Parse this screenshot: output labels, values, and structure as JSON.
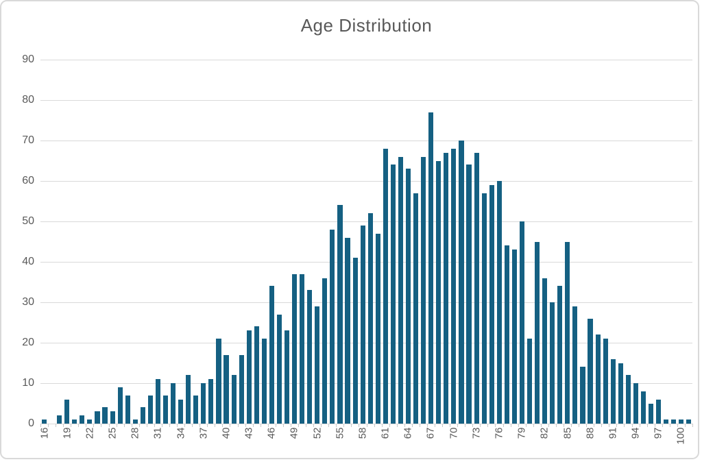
{
  "chart_data": {
    "type": "bar",
    "title": "Age Distribution",
    "xlabel": "",
    "ylabel": "",
    "categories": [
      16,
      17,
      18,
      19,
      20,
      21,
      22,
      23,
      24,
      25,
      26,
      27,
      28,
      29,
      30,
      31,
      32,
      33,
      34,
      35,
      36,
      37,
      38,
      39,
      40,
      41,
      42,
      43,
      44,
      45,
      46,
      47,
      48,
      49,
      50,
      51,
      52,
      53,
      54,
      55,
      56,
      57,
      58,
      59,
      60,
      61,
      62,
      63,
      64,
      65,
      66,
      67,
      68,
      69,
      70,
      71,
      72,
      73,
      74,
      75,
      76,
      77,
      78,
      79,
      80,
      81,
      82,
      83,
      84,
      85,
      86,
      87,
      88,
      89,
      90,
      91,
      92,
      93,
      94,
      95,
      96,
      97,
      98,
      99,
      100,
      101
    ],
    "values": [
      1,
      0,
      2,
      6,
      1,
      2,
      1,
      3,
      4,
      3,
      9,
      7,
      1,
      4,
      7,
      11,
      7,
      10,
      6,
      12,
      7,
      10,
      11,
      21,
      17,
      12,
      17,
      23,
      24,
      21,
      34,
      27,
      23,
      37,
      37,
      33,
      29,
      36,
      48,
      54,
      46,
      41,
      49,
      52,
      47,
      68,
      64,
      66,
      63,
      57,
      66,
      77,
      65,
      67,
      68,
      70,
      64,
      67,
      57,
      59,
      60,
      44,
      43,
      50,
      21,
      45,
      36,
      30,
      34,
      45,
      29,
      14,
      26,
      22,
      21,
      16,
      15,
      12,
      10,
      8,
      5,
      6,
      1,
      1,
      1,
      1
    ],
    "x_tick_labels": [
      "16",
      "19",
      "22",
      "25",
      "28",
      "31",
      "34",
      "37",
      "40",
      "43",
      "46",
      "49",
      "52",
      "55",
      "58",
      "61",
      "64",
      "67",
      "70",
      "73",
      "76",
      "79",
      "82",
      "85",
      "88",
      "91",
      "94",
      "97",
      "100"
    ],
    "x_label_interval": 3,
    "y_tick_labels": [
      "0",
      "10",
      "20",
      "30",
      "40",
      "50",
      "60",
      "70",
      "80",
      "90"
    ],
    "y_ticks": [
      0,
      10,
      20,
      30,
      40,
      50,
      60,
      70,
      80,
      90
    ],
    "ylim": [
      0,
      90
    ],
    "grid": true,
    "legend": "none",
    "bar_color": "#156082",
    "gridline_color": "#d9d9d9",
    "axis_label_color": "#595959",
    "title_color": "#595959",
    "frame_border_color": "#d9d9d9"
  }
}
